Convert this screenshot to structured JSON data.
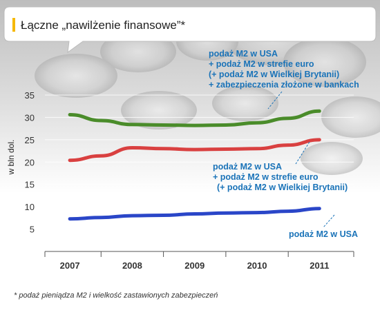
{
  "title": "Łączne „nawilżenie finansowe”*",
  "footnote": "* podaż pieniądza M2 i wielkość zastawionych zabezpieczeń",
  "chart_data": {
    "type": "line",
    "ylabel": "w bln dol.",
    "ylim": [
      0,
      35
    ],
    "yticks": [
      5,
      10,
      15,
      20,
      25,
      30,
      35
    ],
    "xlim": [
      2006.6,
      2011.55
    ],
    "x": [
      2007,
      2007.5,
      2008,
      2008.5,
      2009,
      2009.5,
      2010,
      2010.5,
      2011
    ],
    "xticks": [
      "2007",
      "2008",
      "2009",
      "2010",
      "2011"
    ],
    "grid": true,
    "series": [
      {
        "color": "#4a8c2a",
        "values": [
          30.6,
          29.3,
          28.4,
          28.3,
          28.2,
          28.3,
          28.8,
          29.8,
          31.4
        ]
      },
      {
        "color": "#d94040",
        "values": [
          20.4,
          21.4,
          23.2,
          23.0,
          22.8,
          22.9,
          23.0,
          23.8,
          25.0
        ]
      },
      {
        "color": "#2a46c8",
        "values": [
          7.3,
          7.6,
          8.0,
          8.1,
          8.4,
          8.6,
          8.7,
          9.0,
          9.6
        ]
      }
    ],
    "annotations": [
      {
        "lines": [
          "podaż M2 w USA",
          "+ podaż M2 w strefie euro",
          "(+ podaż M2 w Wielkiej Brytanii)",
          "+ zabezpieczenia złożone w bankach"
        ]
      },
      {
        "lines": [
          "podaż M2 w USA",
          "+ podaż M2 w strefie euro",
          "(+ podaż M2 w Wielkiej Brytanii)"
        ]
      },
      {
        "lines": [
          "podaż M2 w USA"
        ]
      }
    ]
  }
}
